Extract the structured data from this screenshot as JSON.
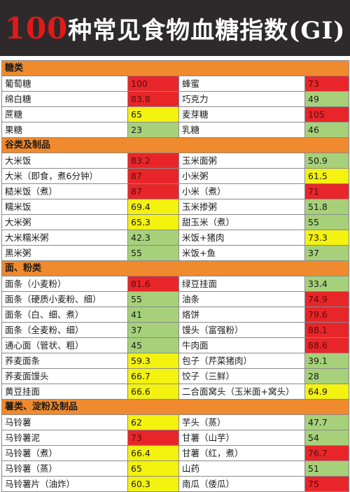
{
  "title": {
    "number": "100",
    "rest": "种常见食物血糖指数(GI)"
  },
  "colors": {
    "high": "#e8262a",
    "medium": "#f4f20f",
    "low": "#a6d17a",
    "section": "#ef8a2e"
  },
  "sections": [
    {
      "name": "糖类",
      "rows": [
        {
          "food1": "葡萄糖",
          "gi1": "100",
          "c1": "red",
          "food2": "蜂蜜",
          "gi2": "73",
          "c2": "red"
        },
        {
          "food1": "绵白糖",
          "gi1": "83.8",
          "c1": "red",
          "food2": "巧克力",
          "gi2": "49",
          "c2": "green"
        },
        {
          "food1": "蔗糖",
          "gi1": "65",
          "c1": "yellow",
          "food2": "麦芽糖",
          "gi2": "105",
          "c2": "red"
        },
        {
          "food1": "果糖",
          "gi1": "23",
          "c1": "green",
          "food2": "乳糖",
          "gi2": "46",
          "c2": "green"
        }
      ]
    },
    {
      "name": "谷类及制品",
      "rows": [
        {
          "food1": "大米饭",
          "gi1": "83.2",
          "c1": "red",
          "food2": "玉米面粥",
          "gi2": "50.9",
          "c2": "green"
        },
        {
          "food1": "大米（即食，煮6分钟）",
          "gi1": "87",
          "c1": "red",
          "food2": "小米粥",
          "gi2": "61.5",
          "c2": "yellow"
        },
        {
          "food1": "糙米饭（煮）",
          "gi1": "87",
          "c1": "red",
          "food2": "小米（煮）",
          "gi2": "71",
          "c2": "red"
        },
        {
          "food1": "糯米饭",
          "gi1": "69.4",
          "c1": "yellow",
          "food2": "玉米掺粥",
          "gi2": "51.8",
          "c2": "green"
        },
        {
          "food1": "大米粥",
          "gi1": "65.3",
          "c1": "yellow",
          "food2": "甜玉米（煮）",
          "gi2": "55",
          "c2": "green"
        },
        {
          "food1": "大米糯米粥",
          "gi1": "42.3",
          "c1": "green",
          "food2": "米饭+猪肉",
          "gi2": "73.3",
          "c2": "yellow"
        },
        {
          "food1": "黑米粥",
          "gi1": "55",
          "c1": "green",
          "food2": "米饭+鱼",
          "gi2": "37",
          "c2": "green"
        }
      ]
    },
    {
      "name": "面、粉类",
      "rows": [
        {
          "food1": "面条（小麦粉）",
          "gi1": "81.6",
          "c1": "red",
          "food2": "绿豆挂面",
          "gi2": "33.4",
          "c2": "green"
        },
        {
          "food1": "面条（硬质小麦粉、细）",
          "gi1": "55",
          "c1": "green",
          "food2": "油条",
          "gi2": "74.9",
          "c2": "red"
        },
        {
          "food1": "面条（白、细、煮）",
          "gi1": "41",
          "c1": "green",
          "food2": "烙饼",
          "gi2": "79.6",
          "c2": "red"
        },
        {
          "food1": "面条（全麦粉、细）",
          "gi1": "37",
          "c1": "green",
          "food2": "馒头（富强粉）",
          "gi2": "88.1",
          "c2": "red"
        },
        {
          "food1": "通心面（管状、粗）",
          "gi1": "45",
          "c1": "green",
          "food2": "牛肉面",
          "gi2": "88.6",
          "c2": "red"
        },
        {
          "food1": "荞麦面条",
          "gi1": "59.3",
          "c1": "yellow",
          "food2": "包子（芹菜猪肉）",
          "gi2": "39.1",
          "c2": "green"
        },
        {
          "food1": "荞麦面馒头",
          "gi1": "66.7",
          "c1": "yellow",
          "food2": "饺子（三鲜）",
          "gi2": "28",
          "c2": "green"
        },
        {
          "food1": "黄豆挂面",
          "gi1": "66.6",
          "c1": "yellow",
          "food2": "二合面窝头（玉米面+窝头）",
          "gi2": "64.9",
          "c2": "yellow"
        }
      ]
    },
    {
      "name": "薯类、淀粉及制品",
      "rows": [
        {
          "food1": "马铃薯",
          "gi1": "62",
          "c1": "yellow",
          "food2": "芋头（蒸）",
          "gi2": "47.7",
          "c2": "green"
        },
        {
          "food1": "马铃薯泥",
          "gi1": "73",
          "c1": "red",
          "food2": "甘薯（山芋）",
          "gi2": "54",
          "c2": "green"
        },
        {
          "food1": "马铃薯（煮）",
          "gi1": "66.4",
          "c1": "yellow",
          "food2": "甘薯（红，煮）",
          "gi2": "76.7",
          "c2": "red"
        },
        {
          "food1": "马铃薯（蒸）",
          "gi1": "65",
          "c1": "yellow",
          "food2": "山药",
          "gi2": "51",
          "c2": "green"
        },
        {
          "food1": "马铃薯片（油炸）",
          "gi1": "60.3",
          "c1": "yellow",
          "food2": "南瓜（倭瓜）",
          "gi2": "75",
          "c2": "red"
        }
      ]
    }
  ]
}
